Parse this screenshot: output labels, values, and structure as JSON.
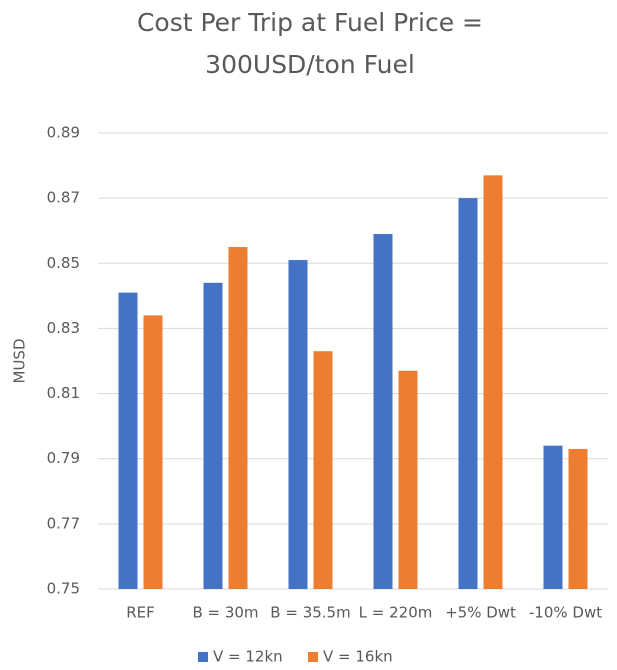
{
  "chart_data": {
    "type": "bar",
    "title": "Cost Per Trip at Fuel Price = 300USD/ton Fuel",
    "y_label": "MUSD",
    "categories": [
      "REF",
      "B = 30m",
      "B = 35.5m",
      "L = 220m",
      "+5% Dwt",
      "-10% Dwt"
    ],
    "series": [
      {
        "name": "V = 12kn",
        "color": "#4472c4",
        "values": [
          0.841,
          0.844,
          0.851,
          0.859,
          0.87,
          0.794
        ]
      },
      {
        "name": "V = 16kn",
        "color": "#ed7d31",
        "values": [
          0.834,
          0.855,
          0.823,
          0.817,
          0.877,
          0.793
        ]
      }
    ],
    "ylim": [
      0.75,
      0.89
    ],
    "yticks": [
      0.75,
      0.77,
      0.79,
      0.81,
      0.83,
      0.85,
      0.87,
      0.89
    ],
    "grid": true,
    "legend": "bottom"
  }
}
